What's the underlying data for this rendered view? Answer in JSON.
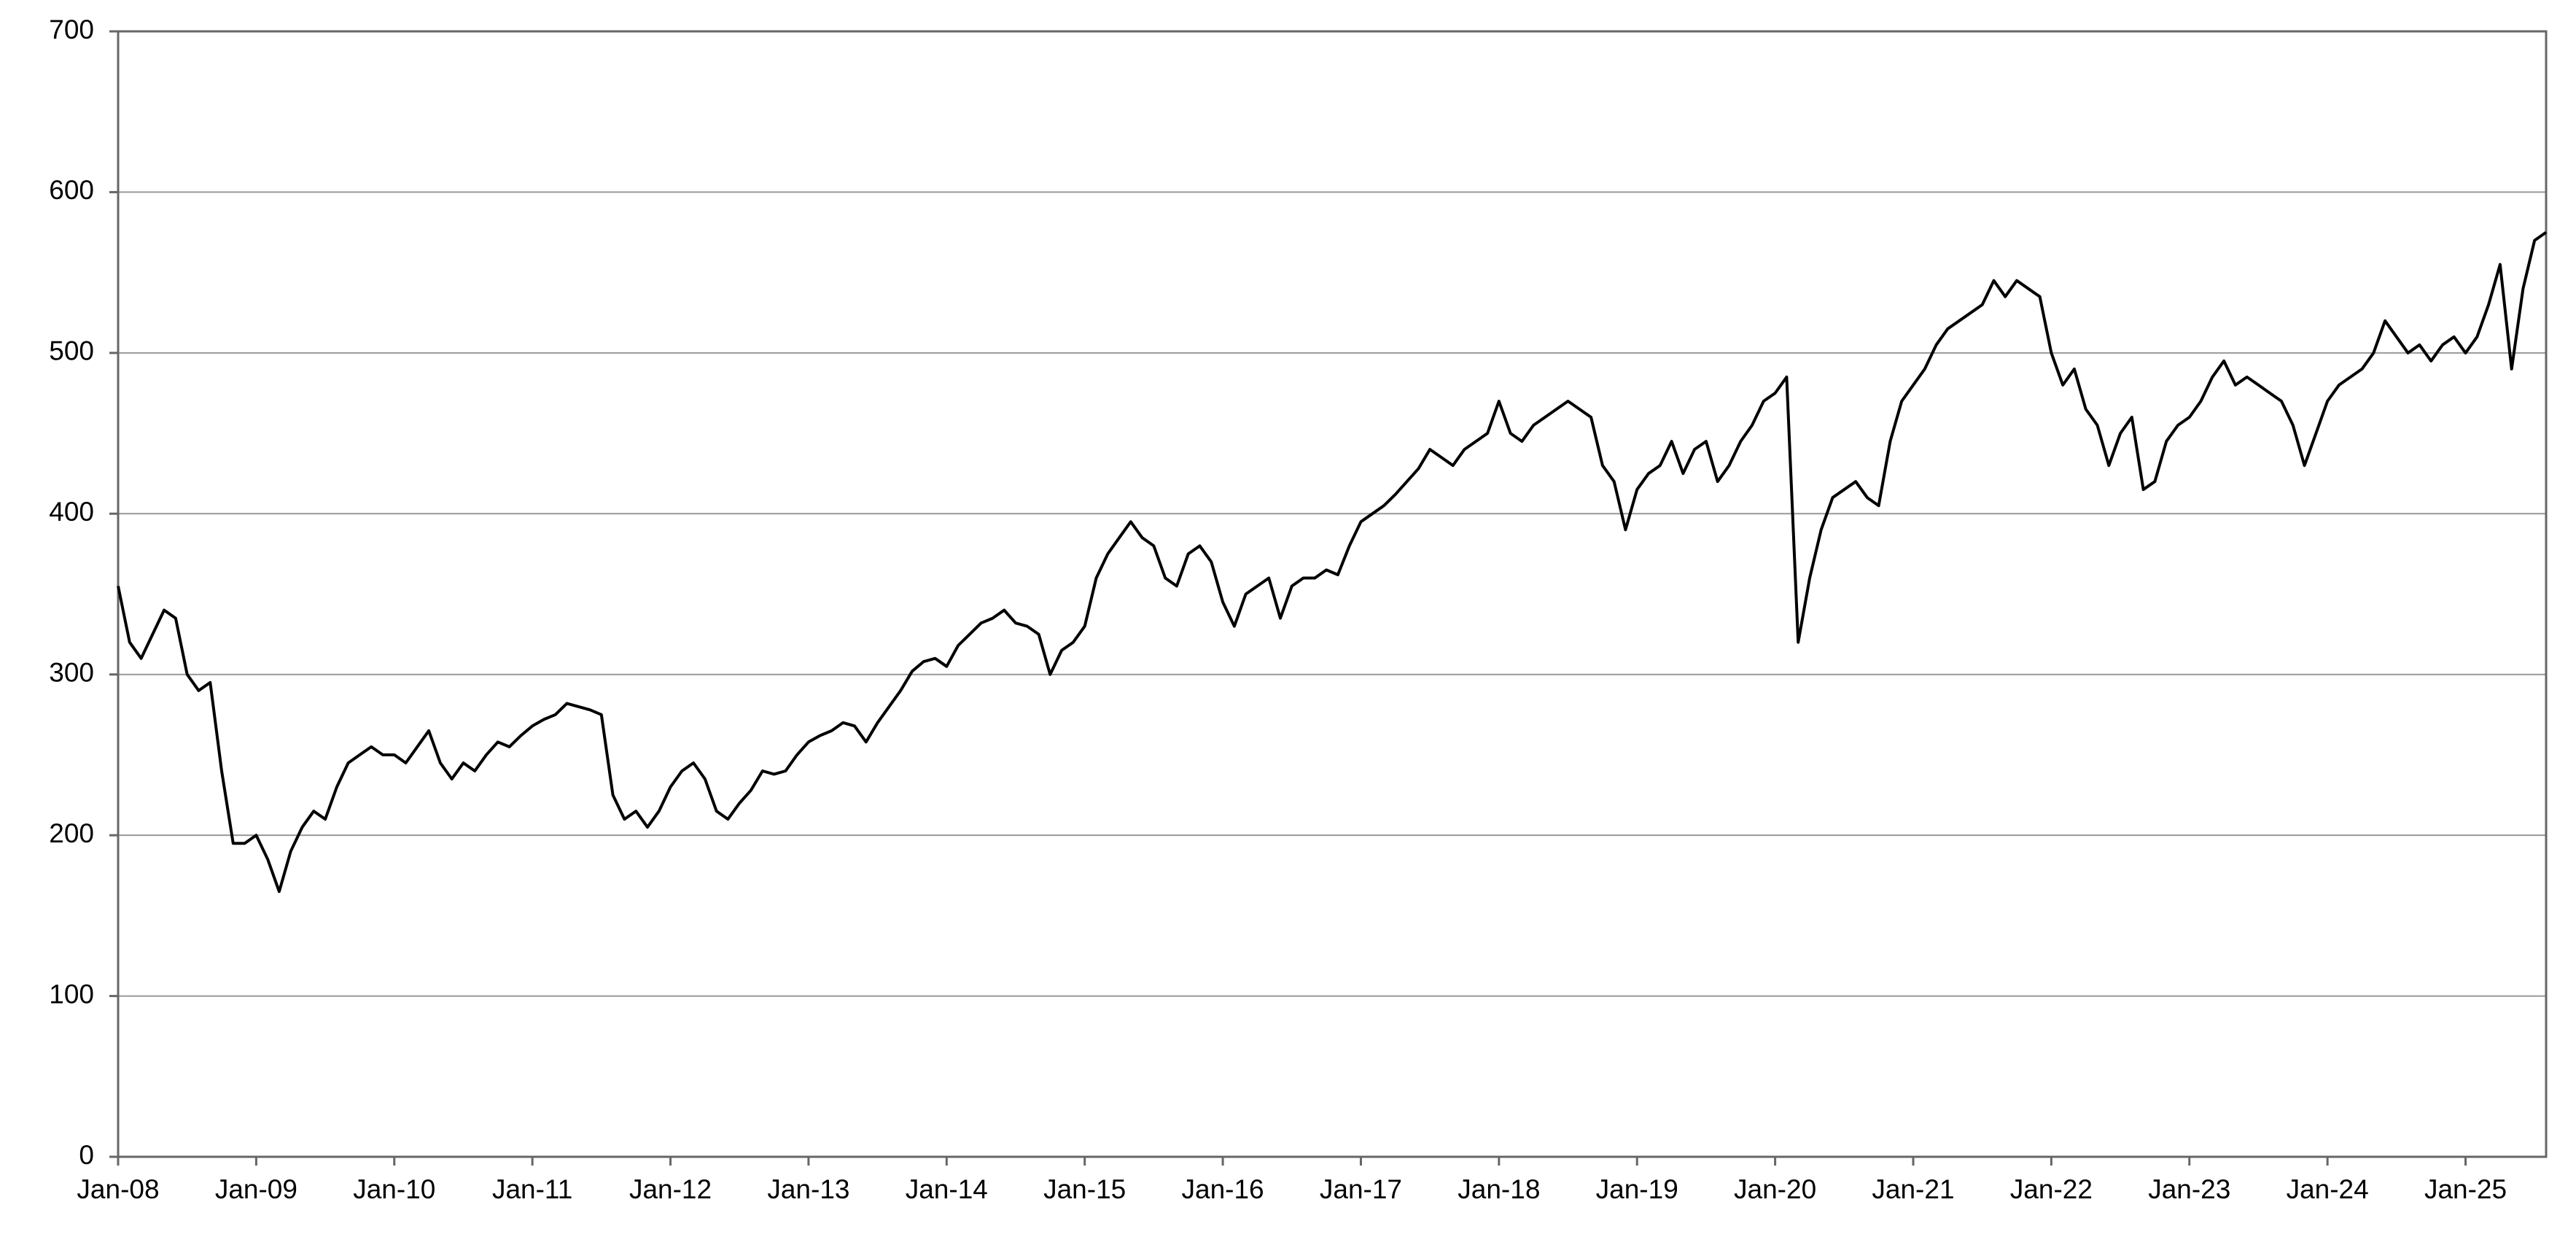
{
  "chart_data": {
    "type": "line",
    "color": "#000000",
    "grid": true,
    "x": [
      "2008-01",
      "2008-02",
      "2008-03",
      "2008-04",
      "2008-05",
      "2008-06",
      "2008-07",
      "2008-08",
      "2008-09",
      "2008-10",
      "2008-11",
      "2008-12",
      "2009-01",
      "2009-02",
      "2009-03",
      "2009-04",
      "2009-05",
      "2009-06",
      "2009-07",
      "2009-08",
      "2009-09",
      "2009-10",
      "2009-11",
      "2009-12",
      "2010-01",
      "2010-02",
      "2010-03",
      "2010-04",
      "2010-05",
      "2010-06",
      "2010-07",
      "2010-08",
      "2010-09",
      "2010-10",
      "2010-11",
      "2010-12",
      "2011-01",
      "2011-02",
      "2011-03",
      "2011-04",
      "2011-05",
      "2011-06",
      "2011-07",
      "2011-08",
      "2011-09",
      "2011-10",
      "2011-11",
      "2011-12",
      "2012-01",
      "2012-02",
      "2012-03",
      "2012-04",
      "2012-05",
      "2012-06",
      "2012-07",
      "2012-08",
      "2012-09",
      "2012-10",
      "2012-11",
      "2012-12",
      "2013-01",
      "2013-02",
      "2013-03",
      "2013-04",
      "2013-05",
      "2013-06",
      "2013-07",
      "2013-08",
      "2013-09",
      "2013-10",
      "2013-11",
      "2013-12",
      "2014-01",
      "2014-02",
      "2014-03",
      "2014-04",
      "2014-05",
      "2014-06",
      "2014-07",
      "2014-08",
      "2014-09",
      "2014-10",
      "2014-11",
      "2014-12",
      "2015-01",
      "2015-02",
      "2015-03",
      "2015-04",
      "2015-05",
      "2015-06",
      "2015-07",
      "2015-08",
      "2015-09",
      "2015-10",
      "2015-11",
      "2015-12",
      "2016-01",
      "2016-02",
      "2016-03",
      "2016-04",
      "2016-05",
      "2016-06",
      "2016-07",
      "2016-08",
      "2016-09",
      "2016-10",
      "2016-11",
      "2016-12",
      "2017-01",
      "2017-02",
      "2017-03",
      "2017-04",
      "2017-05",
      "2017-06",
      "2017-07",
      "2017-08",
      "2017-09",
      "2017-10",
      "2017-11",
      "2017-12",
      "2018-01",
      "2018-02",
      "2018-03",
      "2018-04",
      "2018-05",
      "2018-06",
      "2018-07",
      "2018-08",
      "2018-09",
      "2018-10",
      "2018-11",
      "2018-12",
      "2019-01",
      "2019-02",
      "2019-03",
      "2019-04",
      "2019-05",
      "2019-06",
      "2019-07",
      "2019-08",
      "2019-09",
      "2019-10",
      "2019-11",
      "2019-12",
      "2020-01",
      "2020-02",
      "2020-03",
      "2020-04",
      "2020-05",
      "2020-06",
      "2020-07",
      "2020-08",
      "2020-09",
      "2020-10",
      "2020-11",
      "2020-12",
      "2021-01",
      "2021-02",
      "2021-03",
      "2021-04",
      "2021-05",
      "2021-06",
      "2021-07",
      "2021-08",
      "2021-09",
      "2021-10",
      "2021-11",
      "2021-12",
      "2022-01",
      "2022-02",
      "2022-03",
      "2022-04",
      "2022-05",
      "2022-06",
      "2022-07",
      "2022-08",
      "2022-09",
      "2022-10",
      "2022-11",
      "2022-12",
      "2023-01",
      "2023-02",
      "2023-03",
      "2023-04",
      "2023-05",
      "2023-06",
      "2023-07",
      "2023-08",
      "2023-09",
      "2023-10",
      "2023-11",
      "2023-12",
      "2024-01",
      "2024-02",
      "2024-03",
      "2024-04",
      "2024-05",
      "2024-06",
      "2024-07",
      "2024-08",
      "2024-09",
      "2024-10",
      "2024-11",
      "2024-12",
      "2025-01",
      "2025-02",
      "2025-03",
      "2025-04",
      "2025-05",
      "2025-06",
      "2025-07",
      "2025-08"
    ],
    "values": [
      355,
      320,
      310,
      325,
      340,
      335,
      300,
      290,
      295,
      240,
      195,
      195,
      200,
      185,
      165,
      190,
      205,
      215,
      210,
      230,
      245,
      250,
      255,
      250,
      250,
      245,
      255,
      265,
      245,
      235,
      245,
      240,
      250,
      258,
      255,
      262,
      268,
      272,
      275,
      282,
      280,
      278,
      275,
      225,
      210,
      215,
      205,
      215,
      230,
      240,
      245,
      235,
      215,
      210,
      220,
      228,
      240,
      238,
      240,
      250,
      258,
      262,
      265,
      270,
      268,
      258,
      270,
      280,
      290,
      302,
      308,
      310,
      305,
      318,
      325,
      332,
      335,
      340,
      332,
      330,
      325,
      300,
      315,
      320,
      330,
      360,
      375,
      385,
      395,
      385,
      380,
      360,
      355,
      375,
      380,
      370,
      345,
      330,
      350,
      355,
      360,
      335,
      355,
      360,
      360,
      365,
      362,
      380,
      395,
      400,
      405,
      412,
      420,
      428,
      440,
      435,
      430,
      440,
      445,
      450,
      470,
      450,
      445,
      455,
      460,
      465,
      470,
      465,
      460,
      430,
      420,
      390,
      415,
      425,
      430,
      445,
      425,
      440,
      445,
      420,
      430,
      445,
      455,
      470,
      475,
      485,
      320,
      360,
      390,
      410,
      415,
      420,
      410,
      405,
      445,
      470,
      480,
      490,
      505,
      515,
      520,
      525,
      530,
      545,
      535,
      545,
      540,
      535,
      500,
      480,
      490,
      465,
      455,
      430,
      450,
      460,
      415,
      420,
      445,
      455,
      460,
      470,
      485,
      495,
      480,
      485,
      480,
      475,
      470,
      455,
      430,
      450,
      470,
      480,
      485,
      490,
      500,
      520,
      510,
      500,
      505,
      495,
      505,
      510,
      500,
      510,
      530,
      555,
      490,
      540,
      570,
      575
    ],
    "xlim": [
      "2008-01",
      "2025-08"
    ],
    "xticks": [
      {
        "value": "2008-01",
        "label": "Jan-08"
      },
      {
        "value": "2009-01",
        "label": "Jan-09"
      },
      {
        "value": "2010-01",
        "label": "Jan-10"
      },
      {
        "value": "2011-01",
        "label": "Jan-11"
      },
      {
        "value": "2012-01",
        "label": "Jan-12"
      },
      {
        "value": "2013-01",
        "label": "Jan-13"
      },
      {
        "value": "2014-01",
        "label": "Jan-14"
      },
      {
        "value": "2015-01",
        "label": "Jan-15"
      },
      {
        "value": "2016-01",
        "label": "Jan-16"
      },
      {
        "value": "2017-01",
        "label": "Jan-17"
      },
      {
        "value": "2018-01",
        "label": "Jan-18"
      },
      {
        "value": "2019-01",
        "label": "Jan-19"
      },
      {
        "value": "2020-01",
        "label": "Jan-20"
      },
      {
        "value": "2021-01",
        "label": "Jan-21"
      },
      {
        "value": "2022-01",
        "label": "Jan-22"
      },
      {
        "value": "2023-01",
        "label": "Jan-23"
      },
      {
        "value": "2024-01",
        "label": "Jan-24"
      },
      {
        "value": "2025-01",
        "label": "Jan-25"
      }
    ],
    "ylim": [
      0,
      700
    ],
    "yticks": [
      0,
      100,
      200,
      300,
      400,
      500,
      600,
      700
    ]
  }
}
